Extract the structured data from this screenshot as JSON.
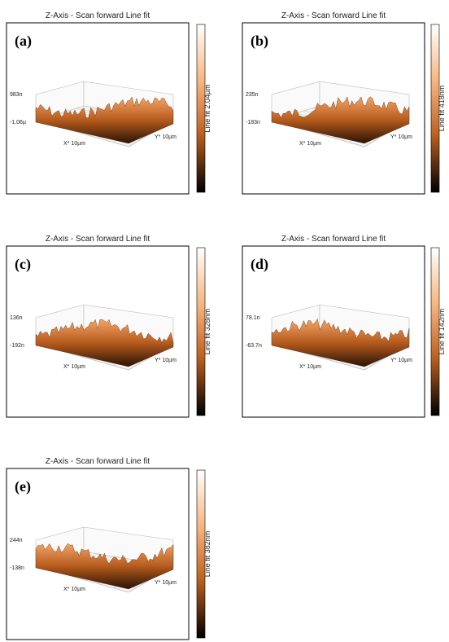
{
  "panels": [
    {
      "title": "Z-Axis - Scan forward   Line fit",
      "label": "(a)",
      "z_max": "983n",
      "z_min": "-1.06µ",
      "x_axis": "X* 10µm",
      "y_axis": "Y* 10µm",
      "colorbar": "Line fit 2.04µm"
    },
    {
      "title": "Z-Axis - Scan forward   Line fit",
      "label": "(b)",
      "z_max": "235n",
      "z_min": "-183n",
      "x_axis": "X* 10µm",
      "y_axis": "Y* 10µm",
      "colorbar": "Line fit 418nm"
    },
    {
      "title": "Z-Axis - Scan forward   Line fit",
      "label": "(c)",
      "z_max": "136n",
      "z_min": "-192n",
      "x_axis": "X* 10µm",
      "y_axis": "Y* 10µm",
      "colorbar": "Line fit 328nm"
    },
    {
      "title": "Z-Axis - Scan forward   Line fit",
      "label": "(d)",
      "z_max": "78.1n",
      "z_min": "-63.7n",
      "x_axis": "X* 10µm",
      "y_axis": "Y* 10µm",
      "colorbar": "Line fit 142nm"
    },
    {
      "title": "Z-Axis - Scan forward   Line fit",
      "label": "(e)",
      "z_max": "244n",
      "z_min": "-138n",
      "x_axis": "X* 10µm",
      "y_axis": "Y* 10µm",
      "colorbar": "Line fit 382nm"
    }
  ]
}
